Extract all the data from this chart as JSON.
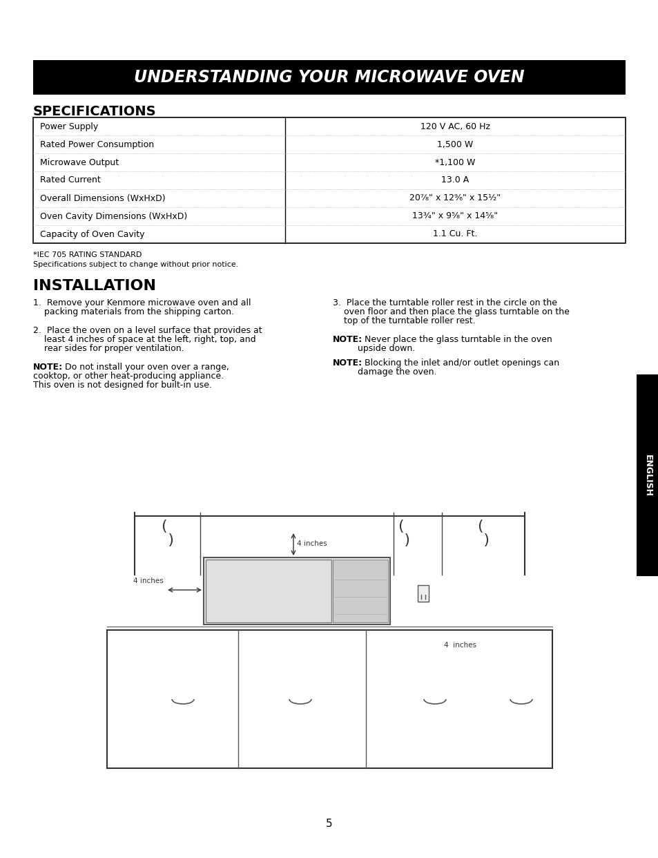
{
  "page_bg": "#ffffff",
  "header_bg": "#000000",
  "header_text": "UNDERSTANDING YOUR MICROWAVE OVEN",
  "header_text_color": "#ffffff",
  "specs_title": "SPECIFICATIONS",
  "install_title": "INSTALLATION",
  "table_rows": [
    [
      "Power Supply",
      "120 V AC, 60 Hz"
    ],
    [
      "Rated Power Consumption",
      "1,500 W"
    ],
    [
      "Microwave Output",
      "*1,100 W"
    ],
    [
      "Rated Current",
      "13.0 A"
    ],
    [
      "Overall Dimensions (WxHxD)",
      "20⁷⁄₈\" x 12⁹⁄₆\" x 15¹⁄₂\""
    ],
    [
      "Oven Cavity Dimensions (WxHxD)",
      "13³⁄₄\" x 9⁵⁄₈\" x 14⁵⁄₈\""
    ],
    [
      "Capacity of Oven Cavity",
      "1.1 Cu. Ft."
    ]
  ],
  "footnote1": "*IEC 705 RATING STANDARD",
  "footnote2": "Specifications subject to change without prior notice.",
  "install_col1": [
    "1.  Remove your Kenmore microwave oven and all\n    packing materials from the shipping carton.",
    "2.  Place the oven on a level surface that provides at\n    least 4 inches of space at the left, right, top, and\n    rear sides for proper ventilation.",
    "NOTE: Do not install your oven over a range,\ncooktop, or other heat-producing appliance.\nThis oven is not designed for built-in use."
  ],
  "install_col2": [
    "3.  Place the turntable roller rest in the circle on the\n    oven floor and then place the glass turntable on the\n    top of the turntable roller rest.",
    "NOTE: Never place the glass turntable in the oven\n         upside down.",
    "NOTE: Blocking the inlet and/or outlet openings can\n         damage the oven."
  ],
  "english_sidebar": "ENGLISH",
  "page_number": "5",
  "table_border": "#000000",
  "text_color": "#000000",
  "sidebar_bg": "#000000",
  "sidebar_text_color": "#ffffff"
}
